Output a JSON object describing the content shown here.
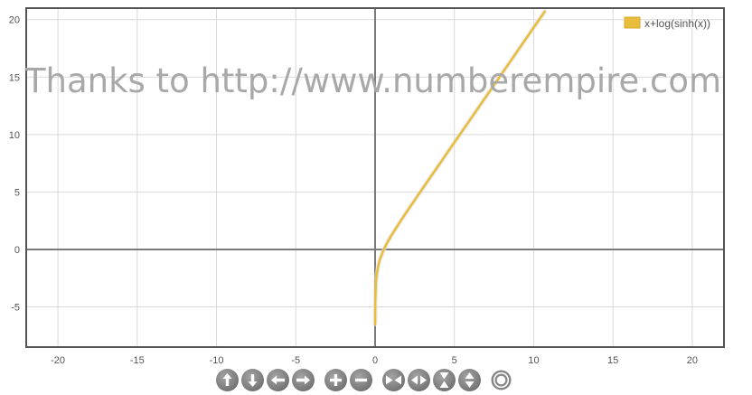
{
  "watermark": "Thanks to http://www.numberempire.com",
  "chart_data": {
    "type": "line",
    "series": [
      {
        "name": "x+log(sinh(x))",
        "color": "#e8bd3c",
        "x": [
          0.0015,
          0.01,
          0.05,
          0.1,
          0.2,
          0.3,
          0.5,
          0.75,
          1.0,
          1.5,
          2.0,
          3.0,
          4.0,
          5.0,
          6.0,
          7.0,
          8.0,
          9.0,
          10.0,
          10.7
        ],
        "y": [
          -6.5,
          -4.6,
          -2.95,
          -2.2,
          -1.41,
          -0.88,
          -0.16,
          0.55,
          1.16,
          2.24,
          3.29,
          5.31,
          7.31,
          9.31,
          11.31,
          13.31,
          15.31,
          17.31,
          19.31,
          20.71
        ]
      }
    ],
    "xlim": [
      -22,
      22
    ],
    "ylim": [
      -8.5,
      21
    ],
    "xticks": [
      -20,
      -15,
      -10,
      -5,
      0,
      5,
      10,
      15,
      20
    ],
    "yticks": [
      -5,
      0,
      5,
      10,
      15,
      20
    ],
    "xtick_labels": [
      "-20",
      "-15",
      "-10",
      "-5",
      "0",
      "5",
      "10",
      "15",
      "20"
    ],
    "ytick_labels": [
      "-5",
      "0",
      "5",
      "10",
      "15",
      "20"
    ],
    "grid": true,
    "legend": "top-right"
  },
  "toolbar": {
    "buttons": [
      {
        "name": "pan-up-button",
        "icon": "arrow-up-icon"
      },
      {
        "name": "pan-down-button",
        "icon": "arrow-down-icon"
      },
      {
        "name": "pan-left-button",
        "icon": "arrow-left-icon"
      },
      {
        "name": "pan-right-button",
        "icon": "arrow-right-icon"
      },
      {
        "name": "zoom-in-button",
        "icon": "plus-icon"
      },
      {
        "name": "zoom-out-button",
        "icon": "minus-icon"
      },
      {
        "name": "zoom-in-x-button",
        "icon": "arrows-inward-horizontal-icon"
      },
      {
        "name": "zoom-out-x-button",
        "icon": "arrows-outward-horizontal-icon"
      },
      {
        "name": "zoom-in-y-button",
        "icon": "arrows-inward-vertical-icon"
      },
      {
        "name": "zoom-out-y-button",
        "icon": "arrows-outward-vertical-icon"
      },
      {
        "name": "reset-view-button",
        "icon": "target-icon"
      }
    ]
  }
}
